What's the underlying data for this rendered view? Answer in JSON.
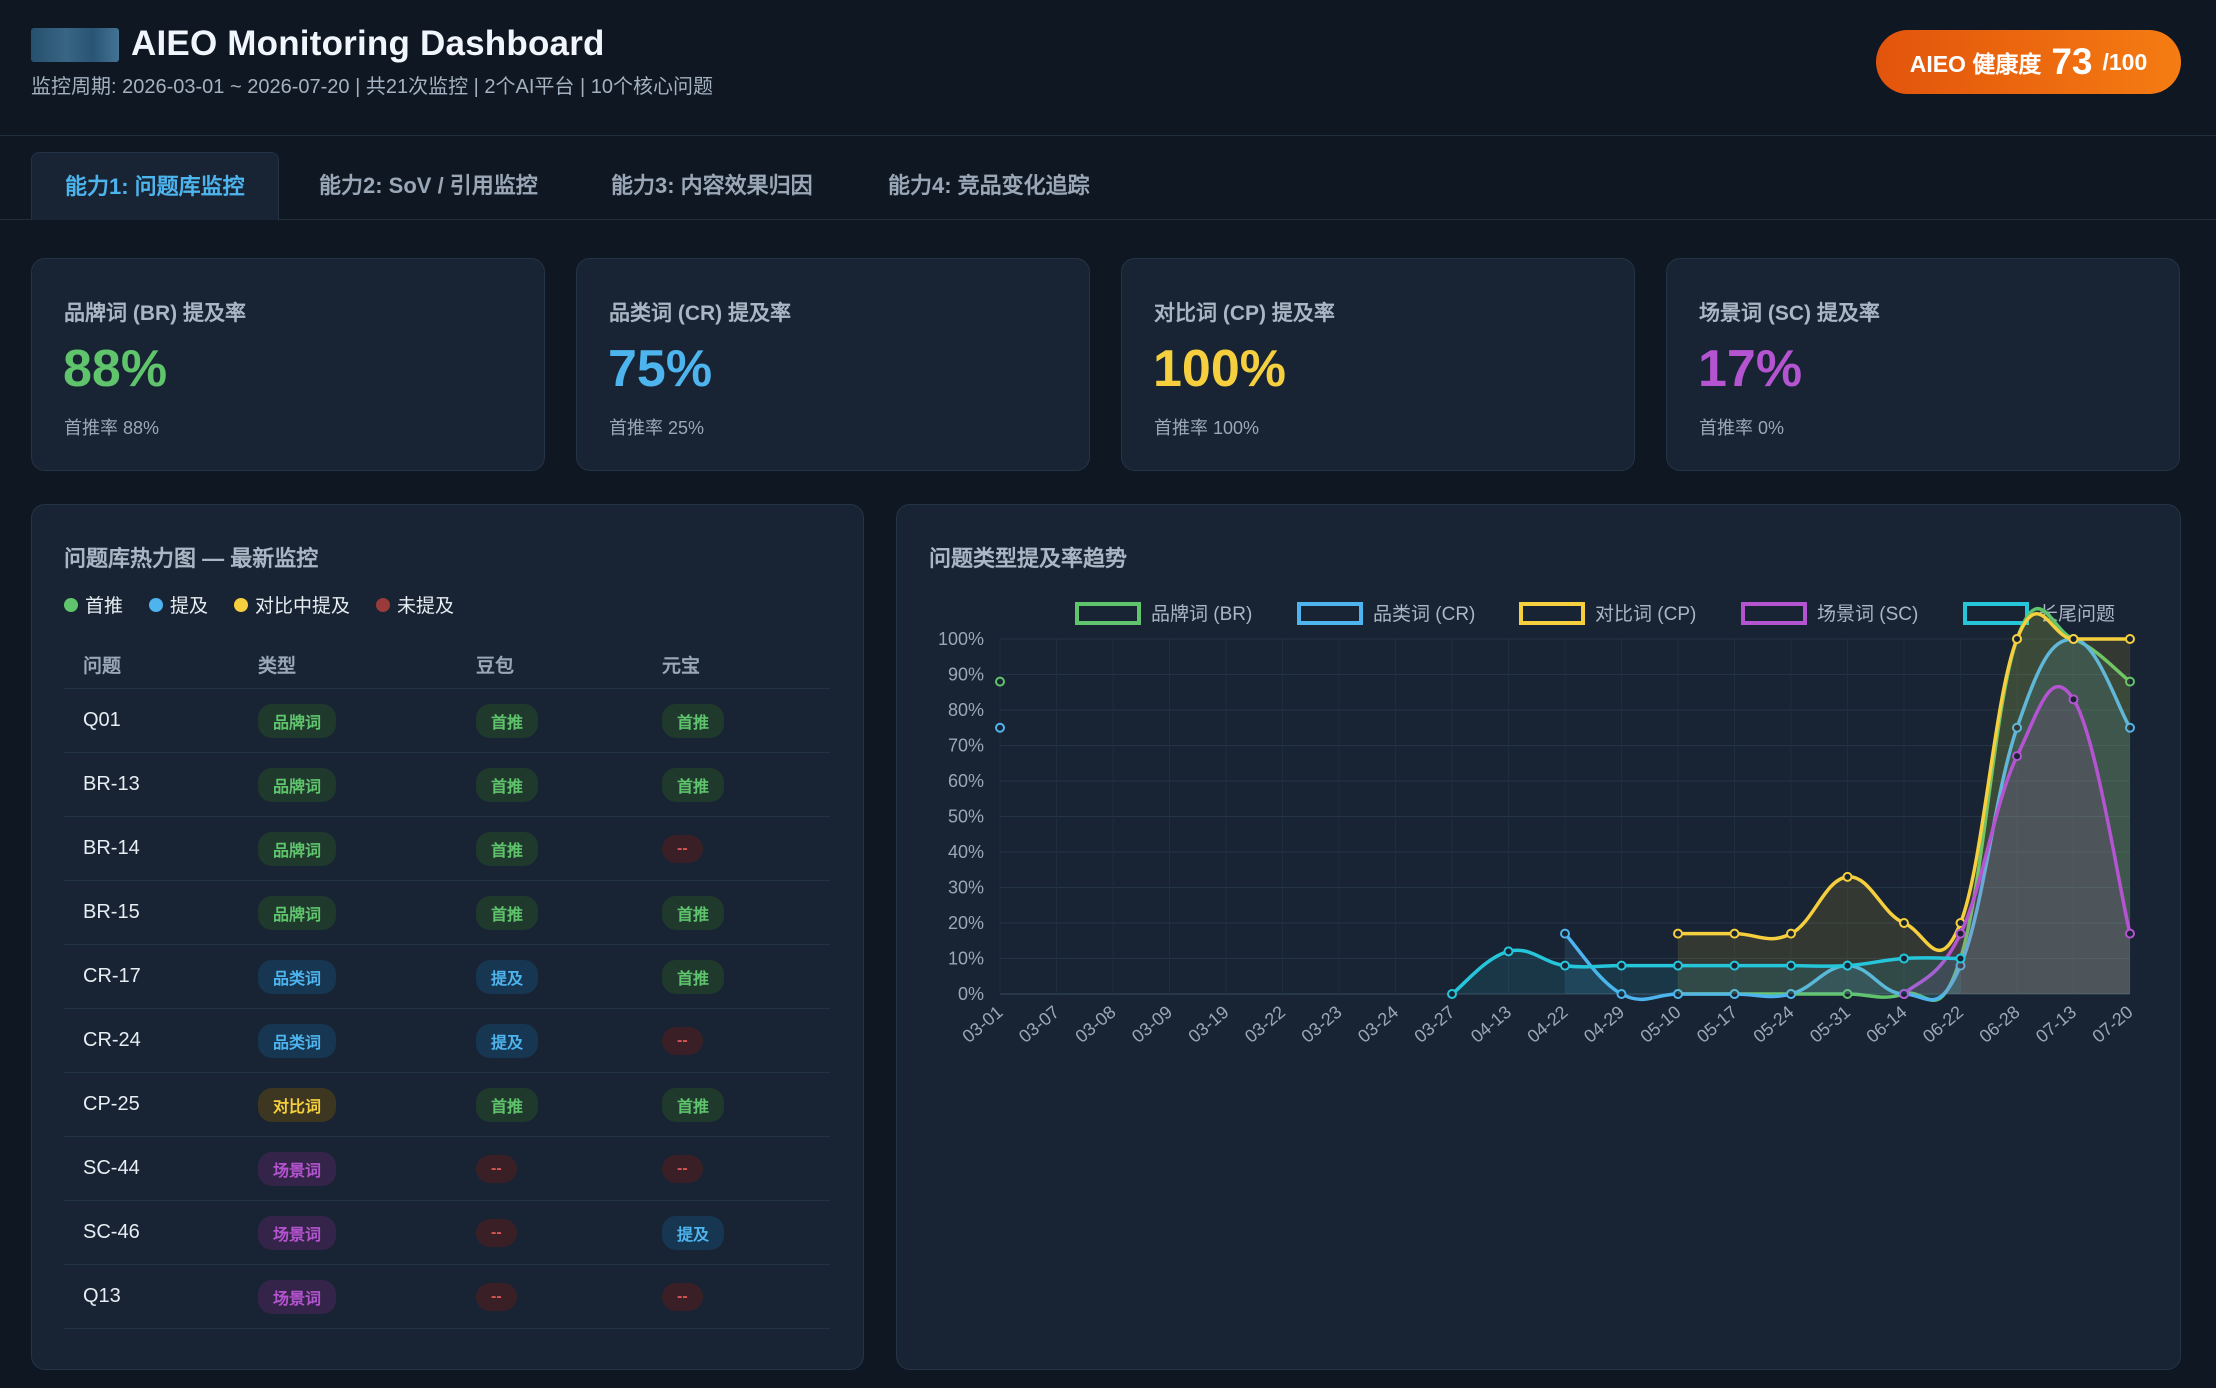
{
  "header": {
    "title": "AIEO Monitoring Dashboard",
    "subtitle": "监控周期: 2026-03-01 ~ 2026-07-20 | 共21次监控 | 2个AI平台 | 10个核心问题",
    "health_label": "AIEO 健康度",
    "health_value": "73",
    "health_max": "/100"
  },
  "tabs": [
    {
      "label": "能力1: 问题库监控",
      "active": true
    },
    {
      "label": "能力2: SoV / 引用监控",
      "active": false
    },
    {
      "label": "能力3: 内容效果归因",
      "active": false
    },
    {
      "label": "能力4: 竞品变化追踪",
      "active": false
    }
  ],
  "kpis": [
    {
      "label": "品牌词 (BR) 提及率",
      "value": "88%",
      "sub": "首推率 88%",
      "color": "#5fc46b"
    },
    {
      "label": "品类词 (CR) 提及率",
      "value": "75%",
      "sub": "首推率 25%",
      "color": "#4db4ee"
    },
    {
      "label": "对比词 (CP) 提及率",
      "value": "100%",
      "sub": "首推率 100%",
      "color": "#f5cf3d"
    },
    {
      "label": "场景词 (SC) 提及率",
      "value": "17%",
      "sub": "首推率 0%",
      "color": "#b454d0"
    }
  ],
  "heatmap": {
    "title": "问题库热力图 — 最新监控",
    "legend": [
      {
        "label": "首推",
        "color": "#5fc46b"
      },
      {
        "label": "提及",
        "color": "#4db4ee"
      },
      {
        "label": "对比中提及",
        "color": "#f5cf3d"
      },
      {
        "label": "未提及",
        "color": "#9a3b3b"
      }
    ],
    "columns": [
      "问题",
      "类型",
      "豆包",
      "元宝"
    ],
    "rows": [
      {
        "q": "Q01",
        "type": "品牌词",
        "tc": "t-br",
        "a": "首推",
        "ac": "s-top",
        "b": "首推",
        "bc": "s-top"
      },
      {
        "q": "BR-13",
        "type": "品牌词",
        "tc": "t-br",
        "a": "首推",
        "ac": "s-top",
        "b": "首推",
        "bc": "s-top"
      },
      {
        "q": "BR-14",
        "type": "品牌词",
        "tc": "t-br",
        "a": "首推",
        "ac": "s-top",
        "b": "--",
        "bc": "s-none"
      },
      {
        "q": "BR-15",
        "type": "品牌词",
        "tc": "t-br",
        "a": "首推",
        "ac": "s-top",
        "b": "首推",
        "bc": "s-top"
      },
      {
        "q": "CR-17",
        "type": "品类词",
        "tc": "t-cr",
        "a": "提及",
        "ac": "s-men",
        "b": "首推",
        "bc": "s-top"
      },
      {
        "q": "CR-24",
        "type": "品类词",
        "tc": "t-cr",
        "a": "提及",
        "ac": "s-men",
        "b": "--",
        "bc": "s-none"
      },
      {
        "q": "CP-25",
        "type": "对比词",
        "tc": "t-cp",
        "a": "首推",
        "ac": "s-top",
        "b": "首推",
        "bc": "s-top"
      },
      {
        "q": "SC-44",
        "type": "场景词",
        "tc": "t-sc",
        "a": "--",
        "ac": "s-none",
        "b": "--",
        "bc": "s-none"
      },
      {
        "q": "SC-46",
        "type": "场景词",
        "tc": "t-sc",
        "a": "--",
        "ac": "s-none",
        "b": "提及",
        "bc": "s-men"
      },
      {
        "q": "Q13",
        "type": "场景词",
        "tc": "t-sc",
        "a": "--",
        "ac": "s-none",
        "b": "--",
        "bc": "s-none"
      }
    ]
  },
  "trend": {
    "title": "问题类型提及率趋势"
  },
  "chart_data": {
    "type": "line",
    "title": "问题类型提及率趋势",
    "categories": [
      "03-01",
      "03-07",
      "03-08",
      "03-09",
      "03-19",
      "03-22",
      "03-23",
      "03-24",
      "03-27",
      "04-13",
      "04-22",
      "04-29",
      "05-10",
      "05-17",
      "05-24",
      "05-31",
      "06-14",
      "06-22",
      "06-28",
      "07-13",
      "07-20"
    ],
    "ylim": [
      0,
      100
    ],
    "yticks": [
      "0%",
      "10%",
      "20%",
      "30%",
      "40%",
      "50%",
      "60%",
      "70%",
      "80%",
      "90%",
      "100%"
    ],
    "series": [
      {
        "name": "品牌词 (BR)",
        "color": "#5fc46b",
        "values": [
          88,
          null,
          null,
          null,
          null,
          null,
          null,
          null,
          null,
          null,
          null,
          null,
          0,
          0,
          0,
          0,
          0,
          10,
          100,
          100,
          88
        ]
      },
      {
        "name": "品类词 (CR)",
        "color": "#4db4ee",
        "values": [
          75,
          null,
          null,
          null,
          null,
          null,
          null,
          null,
          null,
          null,
          17,
          0,
          0,
          0,
          0,
          8,
          0,
          8,
          75,
          100,
          75
        ]
      },
      {
        "name": "对比词 (CP)",
        "color": "#f5cf3d",
        "values": [
          null,
          null,
          null,
          null,
          null,
          null,
          null,
          null,
          null,
          null,
          null,
          null,
          17,
          17,
          17,
          33,
          20,
          20,
          100,
          100,
          100
        ]
      },
      {
        "name": "场景词 (SC)",
        "color": "#b454d0",
        "values": [
          null,
          null,
          null,
          null,
          null,
          null,
          null,
          null,
          null,
          null,
          null,
          null,
          null,
          null,
          null,
          null,
          0,
          17,
          67,
          83,
          17
        ]
      },
      {
        "name": "长尾问题",
        "color": "#26c6da",
        "values": [
          null,
          null,
          null,
          null,
          null,
          null,
          null,
          null,
          0,
          12,
          8,
          8,
          8,
          8,
          8,
          8,
          10,
          10,
          null,
          null,
          null
        ]
      }
    ]
  }
}
